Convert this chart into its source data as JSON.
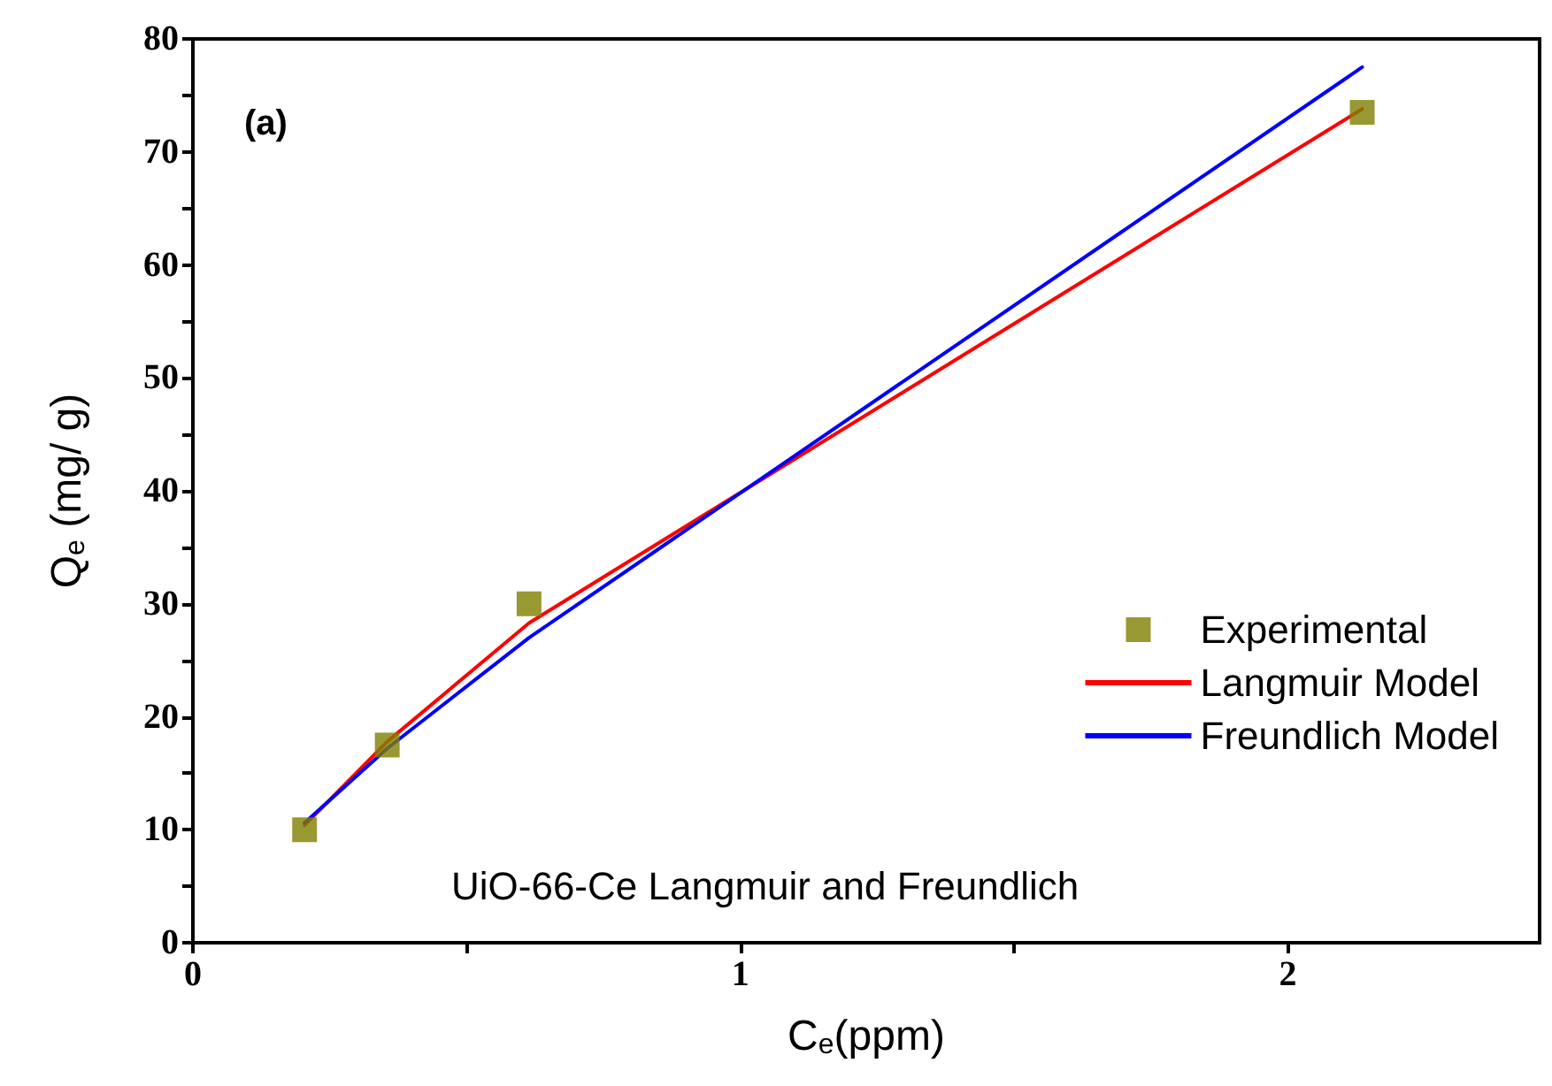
{
  "chart_data": {
    "type": "scatter",
    "xlabel": "C$_{e}$(ppm)",
    "ylabel": "Q$_{e}$ (mg/ g)",
    "annotations": [
      "(a)",
      "UiO-66-Ce Langmuir and Freundlich"
    ],
    "series": [
      {
        "name": "Experimental",
        "color": "#808000",
        "marker": "square",
        "x": [
          0.204,
          0.355,
          0.614,
          2.136
        ],
        "values": [
          10,
          17.5,
          30,
          73.5
        ]
      },
      {
        "name": "Langmuir Model",
        "type": "line",
        "color": "#ff0000",
        "marker": "none",
        "x": [
          0.204,
          0.355,
          0.614,
          2.136
        ],
        "values": [
          10.4,
          17.8,
          28.3,
          73.8
        ]
      },
      {
        "name": "Freundlich Model",
        "type": "line",
        "color": "#0000ff",
        "marker": "none",
        "x": [
          0.204,
          0.355,
          0.614,
          2.136
        ],
        "values": [
          10.6,
          17.2,
          27.0,
          77.5
        ]
      }
    ],
    "xlim": [
      0,
      2.46
    ],
    "xticks": [
      0,
      {
        "value": 0.5,
        "label": null
      },
      1,
      {
        "value": 1.5,
        "label": null
      },
      2
    ],
    "ylim": [
      0,
      80
    ],
    "yticks": [
      0,
      {
        "value": 5,
        "label": null
      },
      10,
      {
        "value": 15,
        "label": null
      },
      20,
      {
        "value": 25,
        "label": null
      },
      30,
      {
        "value": 35,
        "label": null
      },
      40,
      {
        "value": 45,
        "label": null
      },
      50,
      {
        "value": 55,
        "label": null
      },
      60,
      {
        "value": 65,
        "label": null
      },
      70,
      {
        "value": 75,
        "label": null
      },
      80
    ],
    "grid": false,
    "legend": "right"
  }
}
